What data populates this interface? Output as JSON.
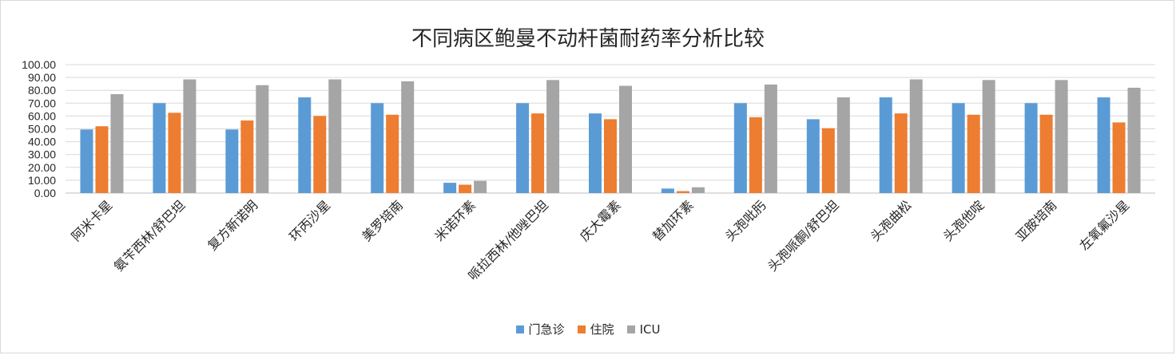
{
  "chart_data": {
    "type": "bar",
    "title": "不同病区鲍曼不动杆菌耐药率分析比较",
    "ylim": [
      0,
      100
    ],
    "y_ticks": [
      "0.00",
      "10.00",
      "20.00",
      "30.00",
      "40.00",
      "50.00",
      "60.00",
      "70.00",
      "80.00",
      "90.00",
      "100.00"
    ],
    "grid": true,
    "legend_position": "bottom",
    "categories": [
      "阿米卡星",
      "氨苄西林/舒巴坦",
      "复方新诺明",
      "环丙沙星",
      "美罗培南",
      "米诺环素",
      "哌拉西林/他唑巴坦",
      "庆大霉素",
      "替加环素",
      "头孢吡肟",
      "头孢哌酮/舒巴坦",
      "头孢曲松",
      "头孢他啶",
      "亚胺培南",
      "左氧氟沙星"
    ],
    "series": [
      {
        "name": "门急诊",
        "color": "#5b9bd5",
        "values": [
          49.5,
          70.0,
          49.5,
          74.5,
          70.0,
          8.0,
          70.0,
          62.0,
          3.5,
          70.0,
          57.5,
          74.5,
          70.0,
          70.0,
          74.5
        ]
      },
      {
        "name": "住院",
        "color": "#ed7d31",
        "values": [
          52.0,
          62.5,
          56.5,
          60.0,
          61.0,
          6.5,
          62.0,
          57.5,
          1.5,
          59.0,
          50.5,
          62.0,
          61.0,
          61.0,
          55.0
        ]
      },
      {
        "name": "ICU",
        "color": "#a5a5a5",
        "values": [
          77.0,
          88.5,
          84.0,
          88.5,
          87.0,
          9.5,
          88.0,
          83.5,
          4.5,
          84.5,
          74.5,
          88.5,
          88.0,
          88.0,
          82.0
        ]
      }
    ]
  }
}
